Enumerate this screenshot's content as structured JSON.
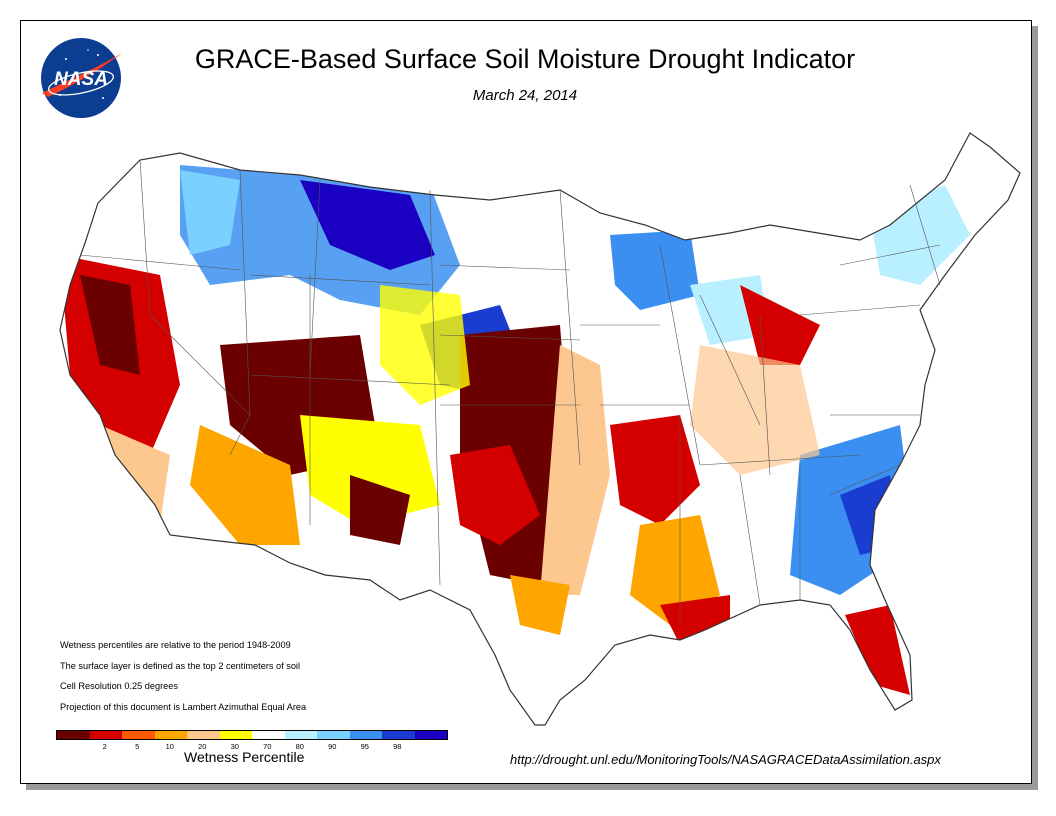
{
  "header": {
    "title": "GRACE-Based Surface Soil  Moisture Drought Indicator",
    "date": "March 24, 2014",
    "logo_text": "NASA"
  },
  "notes": [
    "Wetness percentiles are relative to the period 1948-2009",
    "The surface layer is defined as the top 2 centimeters of soil",
    "Cell Resolution 0.25 degrees",
    "Projection of this document is Lambert Azimuthal Equal Area"
  ],
  "legend": {
    "title": "Wetness Percentile",
    "ticks": [
      "2",
      "5",
      "10",
      "20",
      "30",
      "70",
      "80",
      "90",
      "95",
      "98"
    ],
    "colors": [
      "#6b0000",
      "#d40000",
      "#ff5a00",
      "#ffa500",
      "#fcc88f",
      "#ffff00",
      "#ffffff",
      "#b9f0ff",
      "#7ad0ff",
      "#3b8ff0",
      "#1a3ccf",
      "#1a00c0"
    ]
  },
  "source_url": "http://drought.unl.edu/MonitoringTools/NASAGRACEDataAssimilation.aspx",
  "colors": {
    "nasa_blue": "#0b3d91",
    "nasa_red": "#fc3d21",
    "state_border": "#555555"
  },
  "icons": [
    "nasa-logo-icon"
  ]
}
